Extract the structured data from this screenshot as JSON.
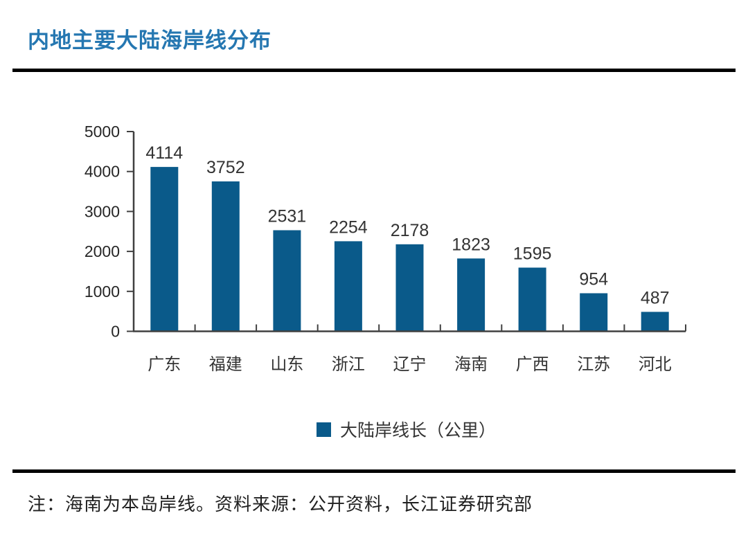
{
  "header": {
    "title": "内地主要大陆海岸线分布",
    "title_color": "#2577b1"
  },
  "chart_data": {
    "type": "bar",
    "title": "内地主要大陆海岸线分布",
    "categories": [
      "广东",
      "福建",
      "山东",
      "浙江",
      "辽宁",
      "海南",
      "广西",
      "江苏",
      "河北"
    ],
    "values": [
      4114,
      3752,
      2531,
      2254,
      2178,
      1823,
      1595,
      954,
      487
    ],
    "series_name": "大陆岸线长（公里）",
    "xlabel": "",
    "ylabel": "",
    "ylim": [
      0,
      5000
    ],
    "yticks": [
      0,
      1000,
      2000,
      3000,
      4000,
      5000
    ],
    "grid": false,
    "data_labels": true,
    "legend_position": "bottom",
    "bar_color": "#0a5a8a",
    "axis_color": "#404040",
    "label_color": "#333333",
    "tick_label_color": "#262626"
  },
  "legend": {
    "swatch_color": "#0a5a8a",
    "label": "大陆岸线长（公里）"
  },
  "footer": {
    "note": "注：海南为本岛岸线。资料来源：公开资料，长江证券研究部"
  }
}
